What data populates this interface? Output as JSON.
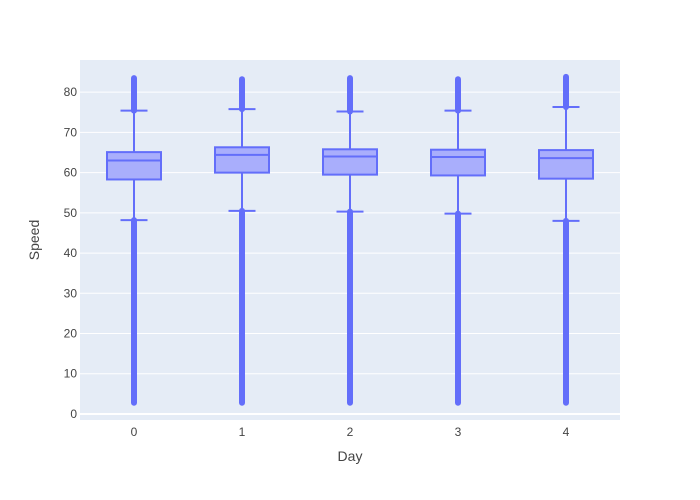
{
  "chart_data": {
    "type": "box",
    "title": "",
    "xlabel": "Day",
    "ylabel": "Speed",
    "categories": [
      "0",
      "1",
      "2",
      "3",
      "4"
    ],
    "ylim": [
      -1.5,
      88
    ],
    "yticks": [
      0,
      10,
      20,
      30,
      40,
      50,
      60,
      70,
      80
    ],
    "grid": true,
    "legend": "none",
    "boxes": [
      {
        "category": "0",
        "q1": 58.3,
        "median": 63.0,
        "q3": 65.1,
        "whisker_low": 48.2,
        "whisker_high": 75.4,
        "outlier_min": 2.8,
        "outlier_max": 83.5
      },
      {
        "category": "1",
        "q1": 60.0,
        "median": 64.4,
        "q3": 66.3,
        "whisker_low": 50.5,
        "whisker_high": 75.8,
        "outlier_min": 2.8,
        "outlier_max": 83.2
      },
      {
        "category": "2",
        "q1": 59.5,
        "median": 64.0,
        "q3": 65.8,
        "whisker_low": 50.3,
        "whisker_high": 75.2,
        "outlier_min": 2.8,
        "outlier_max": 83.5
      },
      {
        "category": "3",
        "q1": 59.3,
        "median": 63.9,
        "q3": 65.7,
        "whisker_low": 49.8,
        "whisker_high": 75.4,
        "outlier_min": 2.8,
        "outlier_max": 83.2
      },
      {
        "category": "4",
        "q1": 58.5,
        "median": 63.6,
        "q3": 65.6,
        "whisker_low": 48.0,
        "whisker_high": 76.3,
        "outlier_min": 2.8,
        "outlier_max": 83.8
      }
    ],
    "colors": {
      "plot_background": "#e5ecf6",
      "grid": "#ffffff",
      "line": "#636efa",
      "fill": "#a9aefc"
    }
  }
}
